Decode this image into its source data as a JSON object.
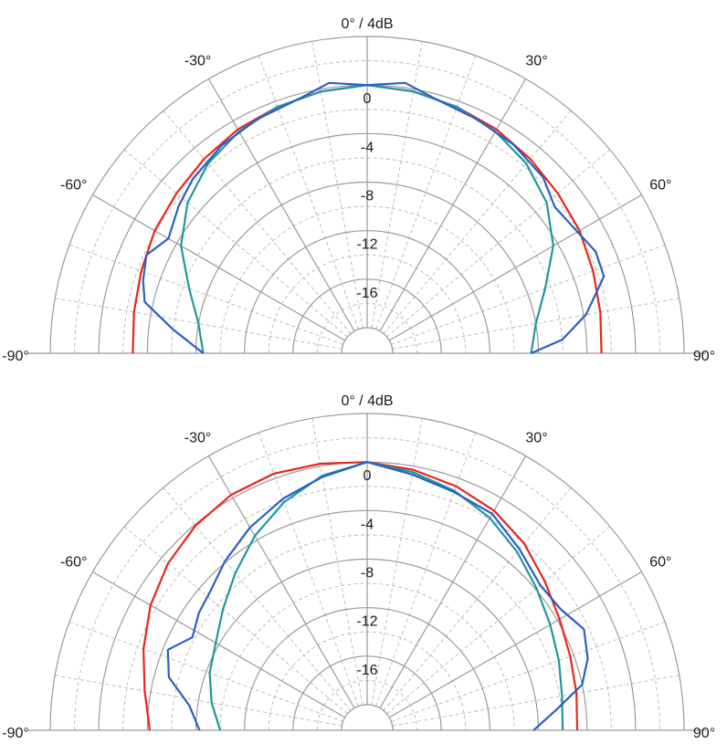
{
  "chart_data": [
    {
      "type": "polar",
      "top_label": "0° / 4dB",
      "angle_labels": [
        "-90°",
        "-60°",
        "-30°",
        "30°",
        "60°",
        "90°"
      ],
      "radial_labels": [
        "0",
        "-4",
        "-8",
        "-12",
        "-16"
      ],
      "r_range_db": [
        -20,
        4
      ],
      "theta_range_deg": [
        -90,
        90
      ],
      "series": [
        {
          "color": "#e8261c",
          "points": [
            [
              -90,
              -2.8
            ],
            [
              -80,
              -2.6
            ],
            [
              -70,
              -2.3
            ],
            [
              -60,
              -1.9
            ],
            [
              -50,
              -1.6
            ],
            [
              -40,
              -1.2
            ],
            [
              -30,
              -0.8
            ],
            [
              -20,
              -0.5
            ],
            [
              -10,
              -0.2
            ],
            [
              0,
              0
            ],
            [
              10,
              -0.2
            ],
            [
              20,
              -0.5
            ],
            [
              30,
              -0.8
            ],
            [
              40,
              -1.2
            ],
            [
              50,
              -1.6
            ],
            [
              60,
              -1.9
            ],
            [
              70,
              -2.3
            ],
            [
              80,
              -2.6
            ],
            [
              90,
              -2.8
            ]
          ]
        },
        {
          "color": "#2196a0",
          "points": [
            [
              -90,
              -8.6
            ],
            [
              -80,
              -8
            ],
            [
              -70,
              -6.5
            ],
            [
              -60,
              -4.4
            ],
            [
              -50,
              -2.8
            ],
            [
              -40,
              -1.7
            ],
            [
              -30,
              -1
            ],
            [
              -20,
              -0.5
            ],
            [
              -10,
              -0.2
            ],
            [
              0,
              0
            ],
            [
              10,
              -0.2
            ],
            [
              20,
              -0.5
            ],
            [
              30,
              -1
            ],
            [
              40,
              -1.7
            ],
            [
              50,
              -2.8
            ],
            [
              60,
              -4.4
            ],
            [
              70,
              -6.5
            ],
            [
              80,
              -8
            ],
            [
              90,
              -8.6
            ]
          ]
        },
        {
          "color": "#2a5fc4",
          "points": [
            [
              -90,
              -8.6
            ],
            [
              -83,
              -6
            ],
            [
              -77,
              -3.3
            ],
            [
              -72,
              -2.7
            ],
            [
              -66,
              -2.2
            ],
            [
              -60,
              -3.2
            ],
            [
              -52,
              -2.4
            ],
            [
              -45,
              -1.8
            ],
            [
              -35,
              -1.2
            ],
            [
              -25,
              -0.8
            ],
            [
              -15,
              -0.4
            ],
            [
              -8,
              0.4
            ],
            [
              0,
              0
            ],
            [
              8,
              0.4
            ],
            [
              15,
              -0.4
            ],
            [
              25,
              -0.8
            ],
            [
              35,
              -1.1
            ],
            [
              45,
              -1.6
            ],
            [
              52,
              -2.5
            ],
            [
              60,
              -2.1
            ],
            [
              66,
              -1.5
            ],
            [
              72,
              -1.6
            ],
            [
              80,
              -3.8
            ],
            [
              86,
              -6
            ],
            [
              90,
              -8.6
            ]
          ]
        }
      ]
    },
    {
      "type": "polar",
      "top_label": "0° / 4dB",
      "angle_labels": [
        "-90°",
        "-60°",
        "-30°",
        "30°",
        "60°",
        "90°"
      ],
      "radial_labels": [
        "0",
        "-4",
        "-8",
        "-12",
        "-16"
      ],
      "r_range_db": [
        -20,
        4
      ],
      "theta_range_deg": [
        -90,
        90
      ],
      "series": [
        {
          "color": "#e8261c",
          "points": [
            [
              -90,
              -4.2
            ],
            [
              -80,
              -3.5
            ],
            [
              -70,
              -2.5
            ],
            [
              -60,
              -1.5
            ],
            [
              -50,
              -0.7
            ],
            [
              -40,
              -0.1
            ],
            [
              -30,
              0.3
            ],
            [
              -20,
              0.4
            ],
            [
              -10,
              0.2
            ],
            [
              0,
              0
            ],
            [
              10,
              -0.3
            ],
            [
              20,
              -0.7
            ],
            [
              30,
              -1.2
            ],
            [
              40,
              -2
            ],
            [
              50,
              -3
            ],
            [
              60,
              -3.8
            ],
            [
              70,
              -4.3
            ],
            [
              80,
              -4.6
            ],
            [
              90,
              -4.8
            ]
          ]
        },
        {
          "color": "#2196a0",
          "points": [
            [
              -90,
              -10
            ],
            [
              -80,
              -9.1
            ],
            [
              -70,
              -8.3
            ],
            [
              -60,
              -7.7
            ],
            [
              -50,
              -6.6
            ],
            [
              -40,
              -5.2
            ],
            [
              -30,
              -3.6
            ],
            [
              -20,
              -2.1
            ],
            [
              -10,
              -0.8
            ],
            [
              0,
              0
            ],
            [
              10,
              -0.5
            ],
            [
              20,
              -1.1
            ],
            [
              30,
              -1.9
            ],
            [
              40,
              -2.9
            ],
            [
              50,
              -3.9
            ],
            [
              60,
              -4.7
            ],
            [
              70,
              -5.3
            ],
            [
              80,
              -5.8
            ],
            [
              90,
              -6
            ]
          ]
        },
        {
          "color": "#2a5fc4",
          "points": [
            [
              -90,
              -8.3
            ],
            [
              -82,
              -7.3
            ],
            [
              -75,
              -5.2
            ],
            [
              -68,
              -4.4
            ],
            [
              -62,
              -5.8
            ],
            [
              -55,
              -5.2
            ],
            [
              -48,
              -4.8
            ],
            [
              -40,
              -3.9
            ],
            [
              -30,
              -2.8
            ],
            [
              -20,
              -1.8
            ],
            [
              -10,
              -0.9
            ],
            [
              0,
              0
            ],
            [
              10,
              -0.7
            ],
            [
              20,
              -1.2
            ],
            [
              30,
              -1.5
            ],
            [
              40,
              -2.6
            ],
            [
              50,
              -3.5
            ],
            [
              58,
              -3.3
            ],
            [
              65,
              -2.4
            ],
            [
              72,
              -3
            ],
            [
              78,
              -4
            ],
            [
              84,
              -6.5
            ],
            [
              90,
              -8.4
            ]
          ]
        }
      ]
    }
  ]
}
